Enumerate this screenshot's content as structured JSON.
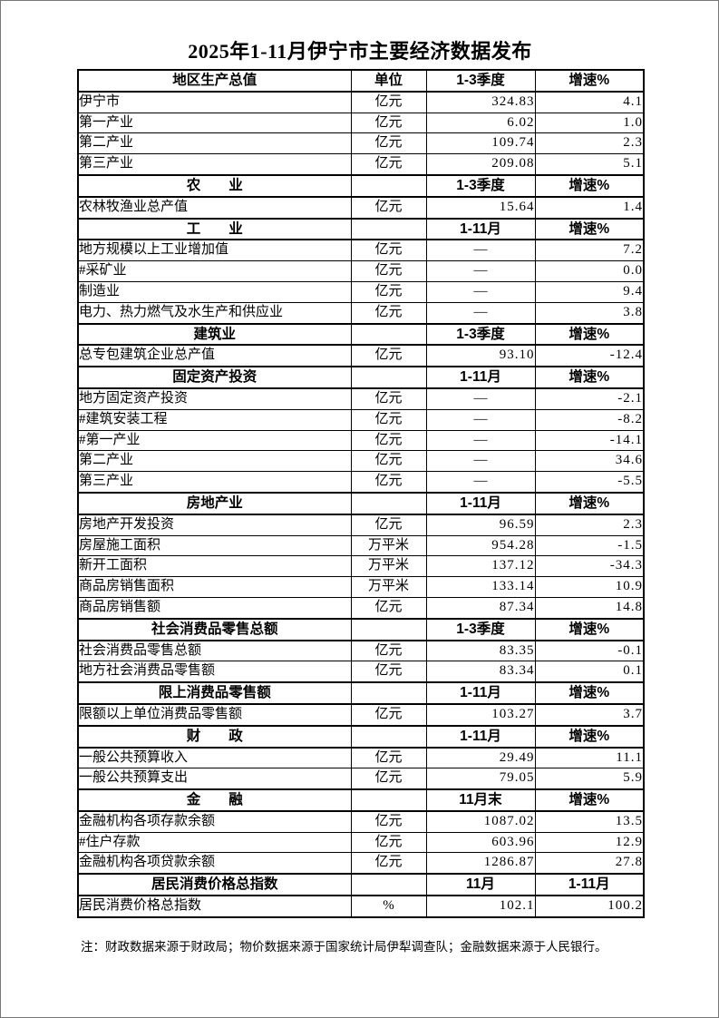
{
  "page": {
    "title": "2025年1-11月伊宁市主要经济数据发布",
    "note": "注：财政数据来源于财政局；物价数据来源于国家统计局伊犁调查队；金融数据来源于人民银行。"
  },
  "table": {
    "rows": [
      {
        "type": "section",
        "label": "地区生产总值",
        "unit": "单位",
        "period": "1-3季度",
        "growth": "增速%"
      },
      {
        "type": "data",
        "indent": 0,
        "label": "伊宁市",
        "unit": "亿元",
        "value": "324.83",
        "growth": "4.1"
      },
      {
        "type": "data",
        "indent": 1,
        "label": "第一产业",
        "unit": "亿元",
        "value": "6.02",
        "growth": "1.0"
      },
      {
        "type": "data",
        "indent": 1,
        "label": "第二产业",
        "unit": "亿元",
        "value": "109.74",
        "growth": "2.3"
      },
      {
        "type": "data",
        "indent": 1,
        "label": "第三产业",
        "unit": "亿元",
        "value": "209.08",
        "growth": "5.1"
      },
      {
        "type": "section",
        "label": "农　　业",
        "unit": "",
        "period": "1-3季度",
        "growth": "增速%"
      },
      {
        "type": "data",
        "indent": 0,
        "label": "农林牧渔业总产值",
        "unit": "亿元",
        "value": "15.64",
        "growth": "1.4"
      },
      {
        "type": "section",
        "label": "工　　业",
        "unit": "",
        "period": "1-11月",
        "growth": "增速%"
      },
      {
        "type": "data",
        "indent": 0,
        "label": "地方规模以上工业增加值",
        "unit": "亿元",
        "value": "—",
        "growth": "7.2"
      },
      {
        "type": "data",
        "indent": 1,
        "label": "#采矿业",
        "unit": "亿元",
        "value": "—",
        "growth": "0.0"
      },
      {
        "type": "data",
        "indent": 3,
        "label": "制造业",
        "unit": "亿元",
        "value": "—",
        "growth": "9.4"
      },
      {
        "type": "data",
        "indent": 4,
        "label": "电力、热力燃气及水生产和供应业",
        "unit": "亿元",
        "value": "—",
        "growth": "3.8"
      },
      {
        "type": "section",
        "label": "建筑业",
        "unit": "",
        "period": "1-3季度",
        "growth": "增速%"
      },
      {
        "type": "data",
        "indent": 0,
        "label": "总专包建筑企业总产值",
        "unit": "亿元",
        "value": "93.10",
        "growth": "-12.4"
      },
      {
        "type": "section",
        "label": "固定资产投资",
        "unit": "",
        "period": "1-11月",
        "growth": "增速%"
      },
      {
        "type": "data",
        "indent": 0,
        "label": "地方固定资产投资",
        "unit": "亿元",
        "value": "—",
        "growth": "-2.1"
      },
      {
        "type": "data",
        "indent": 1,
        "label": "#建筑安装工程",
        "unit": "亿元",
        "value": "—",
        "growth": "-8.2"
      },
      {
        "type": "data",
        "indent": 1,
        "label": "#第一产业",
        "unit": "亿元",
        "value": "—",
        "growth": "-14.1"
      },
      {
        "type": "data",
        "indent": 3,
        "label": "第二产业",
        "unit": "亿元",
        "value": "—",
        "growth": "34.6"
      },
      {
        "type": "data",
        "indent": 3,
        "label": "第三产业",
        "unit": "亿元",
        "value": "—",
        "growth": "-5.5"
      },
      {
        "type": "section",
        "label": "房地产业",
        "unit": "",
        "period": "1-11月",
        "growth": "增速%"
      },
      {
        "type": "data",
        "indent": 0,
        "label": "房地产开发投资",
        "unit": "亿元",
        "value": "96.59",
        "growth": "2.3"
      },
      {
        "type": "data",
        "indent": 0,
        "label": "房屋施工面积",
        "unit": "万平米",
        "value": "954.28",
        "growth": "-1.5"
      },
      {
        "type": "data",
        "indent": 0,
        "label": "新开工面积",
        "unit": "万平米",
        "value": "137.12",
        "growth": "-34.3"
      },
      {
        "type": "data",
        "indent": 0,
        "label": "商品房销售面积",
        "unit": "万平米",
        "value": "133.14",
        "growth": "10.9"
      },
      {
        "type": "data",
        "indent": 0,
        "label": "商品房销售额",
        "unit": "亿元",
        "value": "87.34",
        "growth": "14.8"
      },
      {
        "type": "section",
        "label": "社会消费品零售总额",
        "unit": "",
        "period": "1-3季度",
        "growth": "增速%"
      },
      {
        "type": "data",
        "indent": 0,
        "label": "社会消费品零售总额",
        "unit": "亿元",
        "value": "83.35",
        "growth": "-0.1"
      },
      {
        "type": "data",
        "indent": 2,
        "label": "地方社会消费品零售额",
        "unit": "亿元",
        "value": "83.34",
        "growth": "0.1"
      },
      {
        "type": "section",
        "label": "限上消费品零售额",
        "unit": "",
        "period": "1-11月",
        "growth": "增速%"
      },
      {
        "type": "data",
        "indent": 0,
        "label": "限额以上单位消费品零售额",
        "unit": "亿元",
        "value": "103.27",
        "growth": "3.7"
      },
      {
        "type": "section",
        "label": "财　　政",
        "unit": "",
        "period": "1-11月",
        "growth": "增速%"
      },
      {
        "type": "data",
        "indent": 1,
        "label": "一般公共预算收入",
        "unit": "亿元",
        "value": "29.49",
        "growth": "11.1"
      },
      {
        "type": "data",
        "indent": 1,
        "label": "一般公共预算支出",
        "unit": "亿元",
        "value": "79.05",
        "growth": "5.9"
      },
      {
        "type": "section",
        "label": "金　　融",
        "unit": "",
        "period": "11月末",
        "growth": "增速%"
      },
      {
        "type": "data",
        "indent": 0,
        "label": "金融机构各项存款余额",
        "unit": "亿元",
        "value": "1087.02",
        "growth": "13.5"
      },
      {
        "type": "data",
        "indent": 1,
        "label": "#住户存款",
        "unit": "亿元",
        "value": "603.96",
        "growth": "12.9"
      },
      {
        "type": "data",
        "indent": 0,
        "label": "金融机构各项贷款余额",
        "unit": "亿元",
        "value": "1286.87",
        "growth": "27.8"
      },
      {
        "type": "section",
        "label": "居民消费价格总指数",
        "unit": "",
        "period": "11月",
        "growth": "1-11月"
      },
      {
        "type": "data",
        "indent": 0,
        "label": "居民消费价格总指数",
        "unit": "%",
        "value": "102.1",
        "growth": "100.2"
      }
    ]
  }
}
